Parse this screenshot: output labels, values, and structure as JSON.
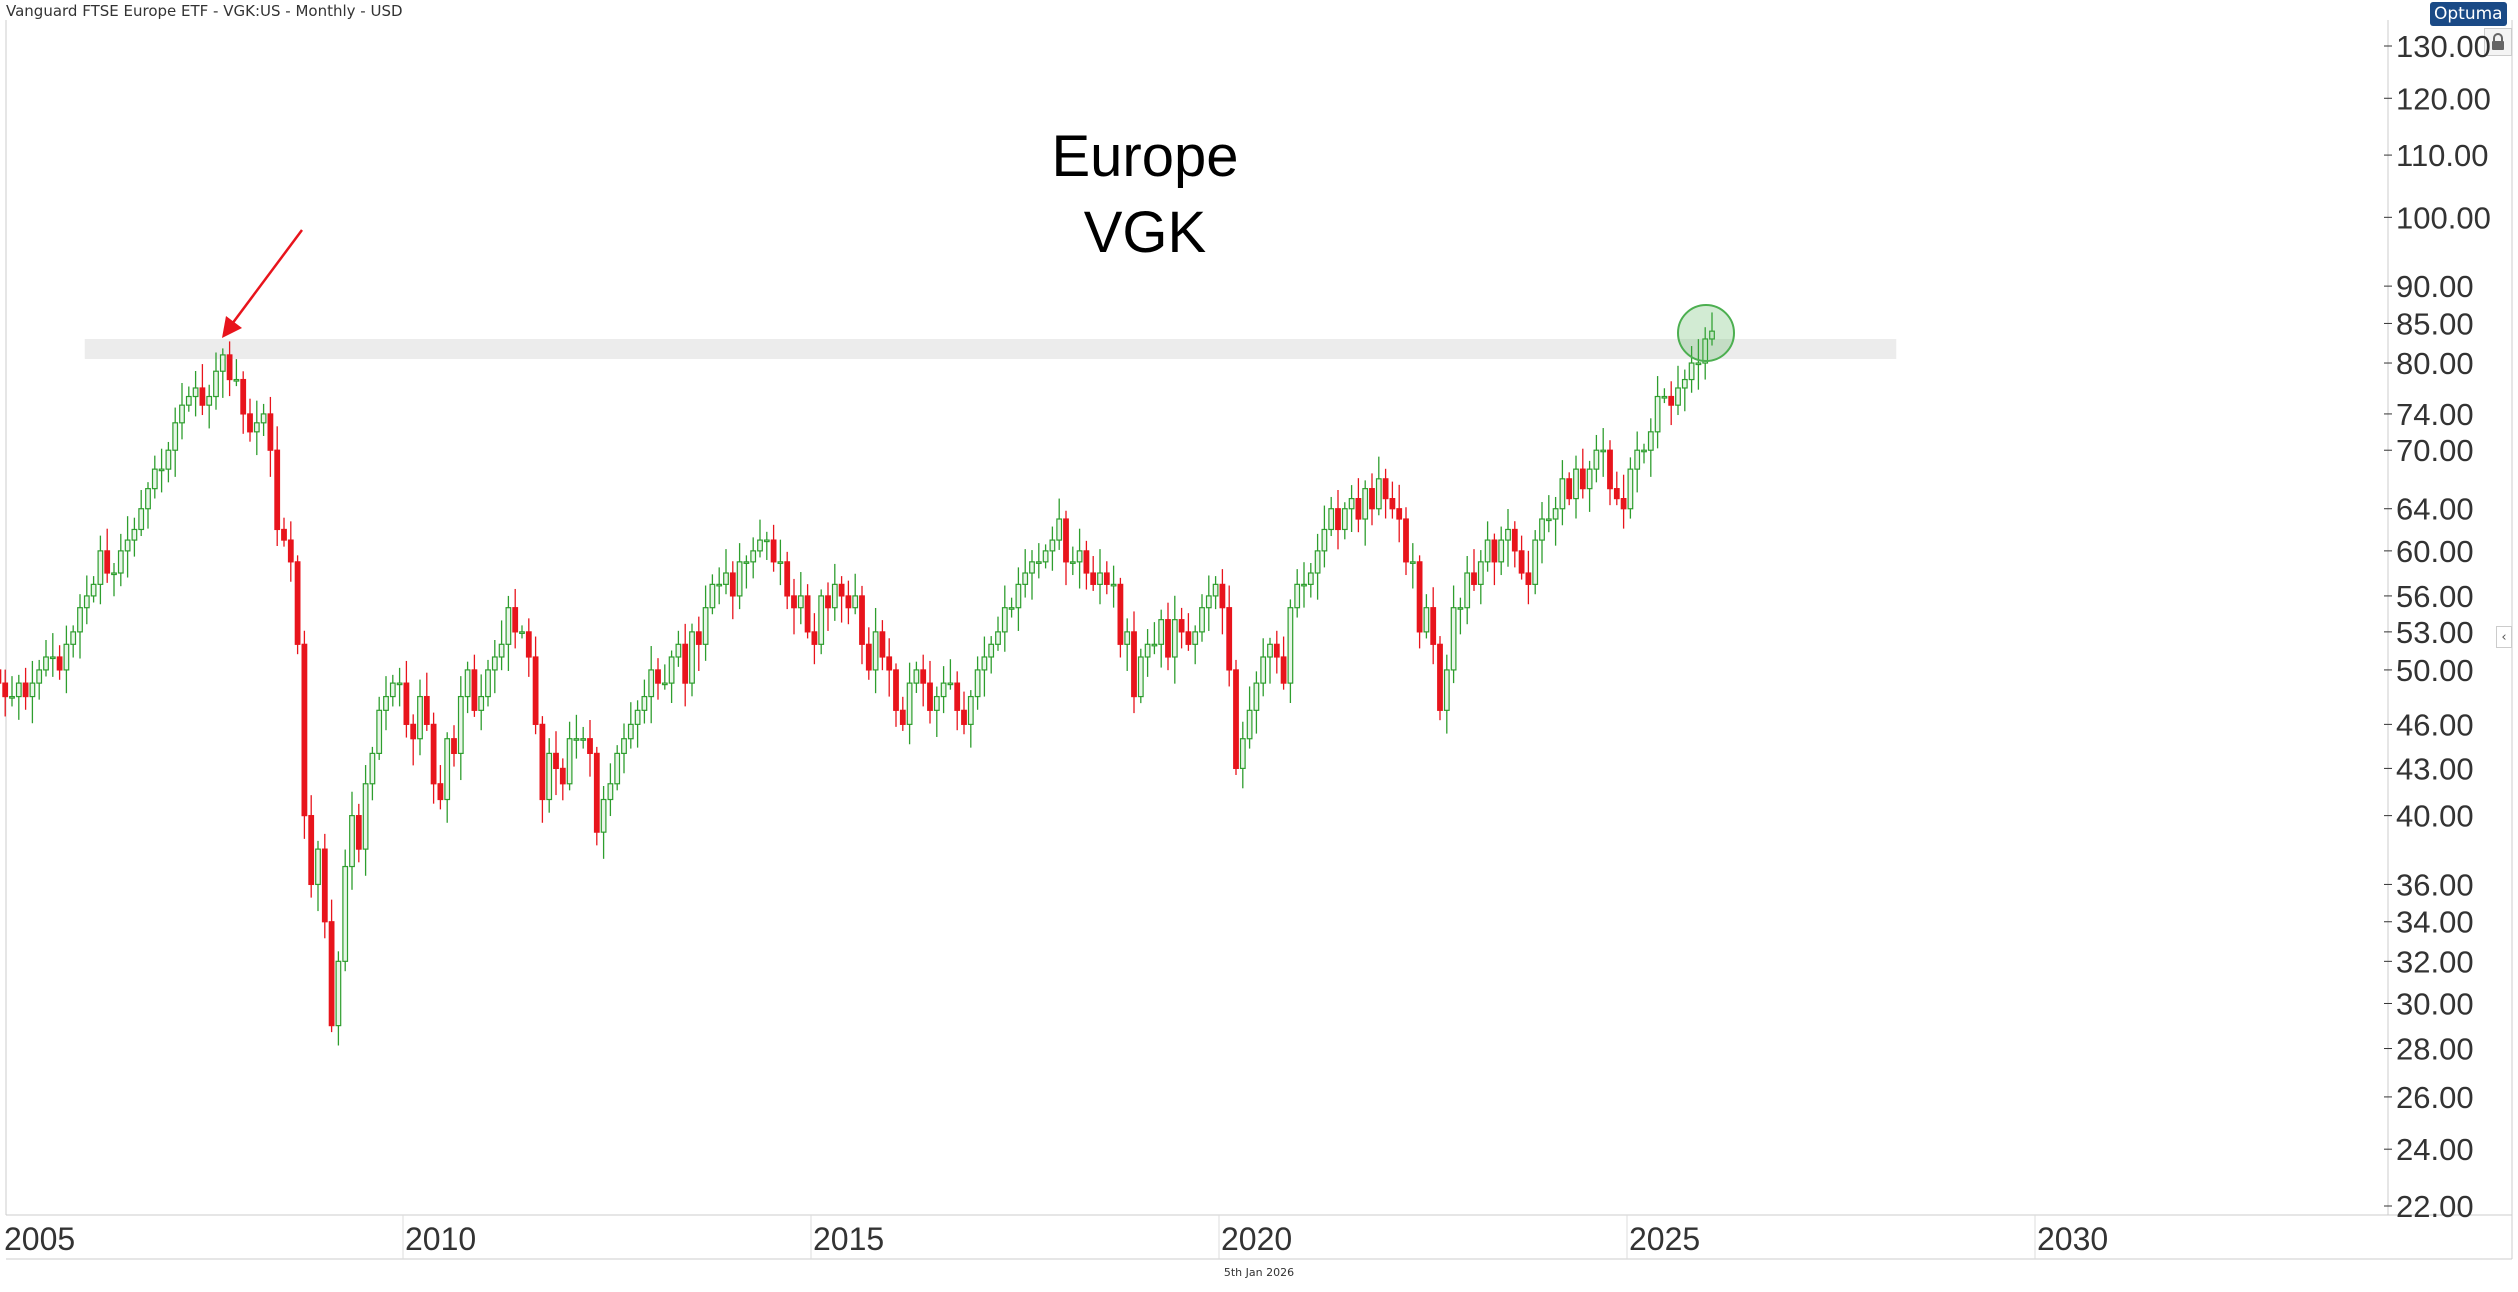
{
  "header": {
    "title": "Vanguard FTSE Europe ETF - VGK:US - Monthly - USD",
    "logo": "Optuma"
  },
  "footer": {
    "date": "5th Jan 2026"
  },
  "colors": {
    "up": "#2e9e2e",
    "up_fill": "#e8f6e8",
    "down": "#e8141c",
    "band": "#ececec",
    "arrow": "#e8141c",
    "circle": "#4caf50"
  },
  "chart_data": {
    "type": "candlestick",
    "title": "Europe",
    "subtitle": "VGK",
    "scale": "log",
    "ylim": [
      22,
      130
    ],
    "y_ticks": [
      130,
      120,
      110,
      100,
      90,
      85,
      80,
      74,
      70,
      64,
      60,
      56,
      53,
      50,
      46,
      43,
      40,
      36,
      34,
      32,
      30,
      28,
      26,
      24,
      22
    ],
    "y_tick_labels": [
      "130.00",
      "120.00",
      "110.00",
      "100.00",
      "90.00",
      "85.00",
      "80.00",
      "74.00",
      "70.00",
      "64.00",
      "60.00",
      "56.00",
      "53.00",
      "50.00",
      "46.00",
      "43.00",
      "40.00",
      "36.00",
      "34.00",
      "32.00",
      "30.00",
      "28.00",
      "26.00",
      "24.00",
      "22.00"
    ],
    "x_ticks": [
      "2005",
      "2010",
      "2015",
      "2020",
      "2025",
      "2030"
    ],
    "x_tick_years": [
      2005,
      2010,
      2015,
      2020,
      2025,
      2030
    ],
    "start": "2005-01",
    "first_open": 50,
    "monthly_close": [
      49,
      48,
      48,
      49,
      48,
      49,
      50,
      51,
      51,
      50,
      52,
      53,
      55,
      56,
      57,
      60,
      58,
      58,
      60,
      61,
      62,
      64,
      66,
      68,
      68,
      70,
      73,
      75,
      76,
      77,
      75,
      76,
      79,
      81,
      78,
      78,
      74,
      72,
      73,
      74,
      70,
      62,
      61,
      59,
      52,
      40,
      36,
      38,
      34,
      29,
      32,
      37,
      40,
      38,
      42,
      44,
      47,
      48,
      49,
      49,
      46,
      45,
      48,
      46,
      42,
      41,
      45,
      44,
      48,
      50,
      47,
      48,
      50,
      51,
      52,
      55,
      53,
      53,
      51,
      46,
      41,
      44,
      43,
      42,
      45,
      45,
      45,
      44,
      39,
      41,
      42,
      44,
      45,
      46,
      47,
      48,
      50,
      49,
      49,
      51,
      52,
      49,
      53,
      52,
      55,
      57,
      57,
      58,
      56,
      59,
      59,
      60,
      61,
      61,
      59,
      59,
      56,
      55,
      56,
      53,
      52,
      56,
      55,
      57,
      56,
      55,
      56,
      52,
      50,
      53,
      51,
      50,
      47,
      46,
      49,
      50,
      49,
      47,
      48,
      49,
      49,
      47,
      46,
      48,
      50,
      51,
      52,
      53,
      55,
      55,
      57,
      58,
      59,
      59,
      60,
      61,
      63,
      59,
      59,
      60,
      58,
      57,
      58,
      57,
      57,
      52,
      53,
      48,
      51,
      52,
      52,
      54,
      51,
      54,
      53,
      52,
      53,
      55,
      56,
      57,
      55,
      50,
      43,
      45,
      47,
      49,
      51,
      52,
      51,
      49,
      55,
      57,
      57,
      58,
      60,
      62,
      64,
      62,
      64,
      65,
      63,
      66,
      64,
      67,
      65,
      64,
      63,
      59,
      59,
      53,
      55,
      52,
      47,
      50,
      55,
      55,
      58,
      57,
      59,
      61,
      59,
      61,
      62,
      60,
      58,
      57,
      61,
      63,
      63,
      64,
      67,
      65,
      68,
      66,
      68,
      70,
      70,
      66,
      65,
      64,
      68,
      70,
      70,
      72,
      76,
      76,
      75,
      77,
      78,
      80,
      80,
      83,
      84
    ],
    "resistance_zone": [
      80.5,
      83
    ],
    "resistance_zone_years": [
      2006.1,
      2028.3
    ],
    "annotations": [
      {
        "type": "arrow",
        "points_to": "2007-10 high"
      },
      {
        "type": "circle",
        "highlights": "2025-12 / 2026-01 breakout"
      }
    ]
  }
}
